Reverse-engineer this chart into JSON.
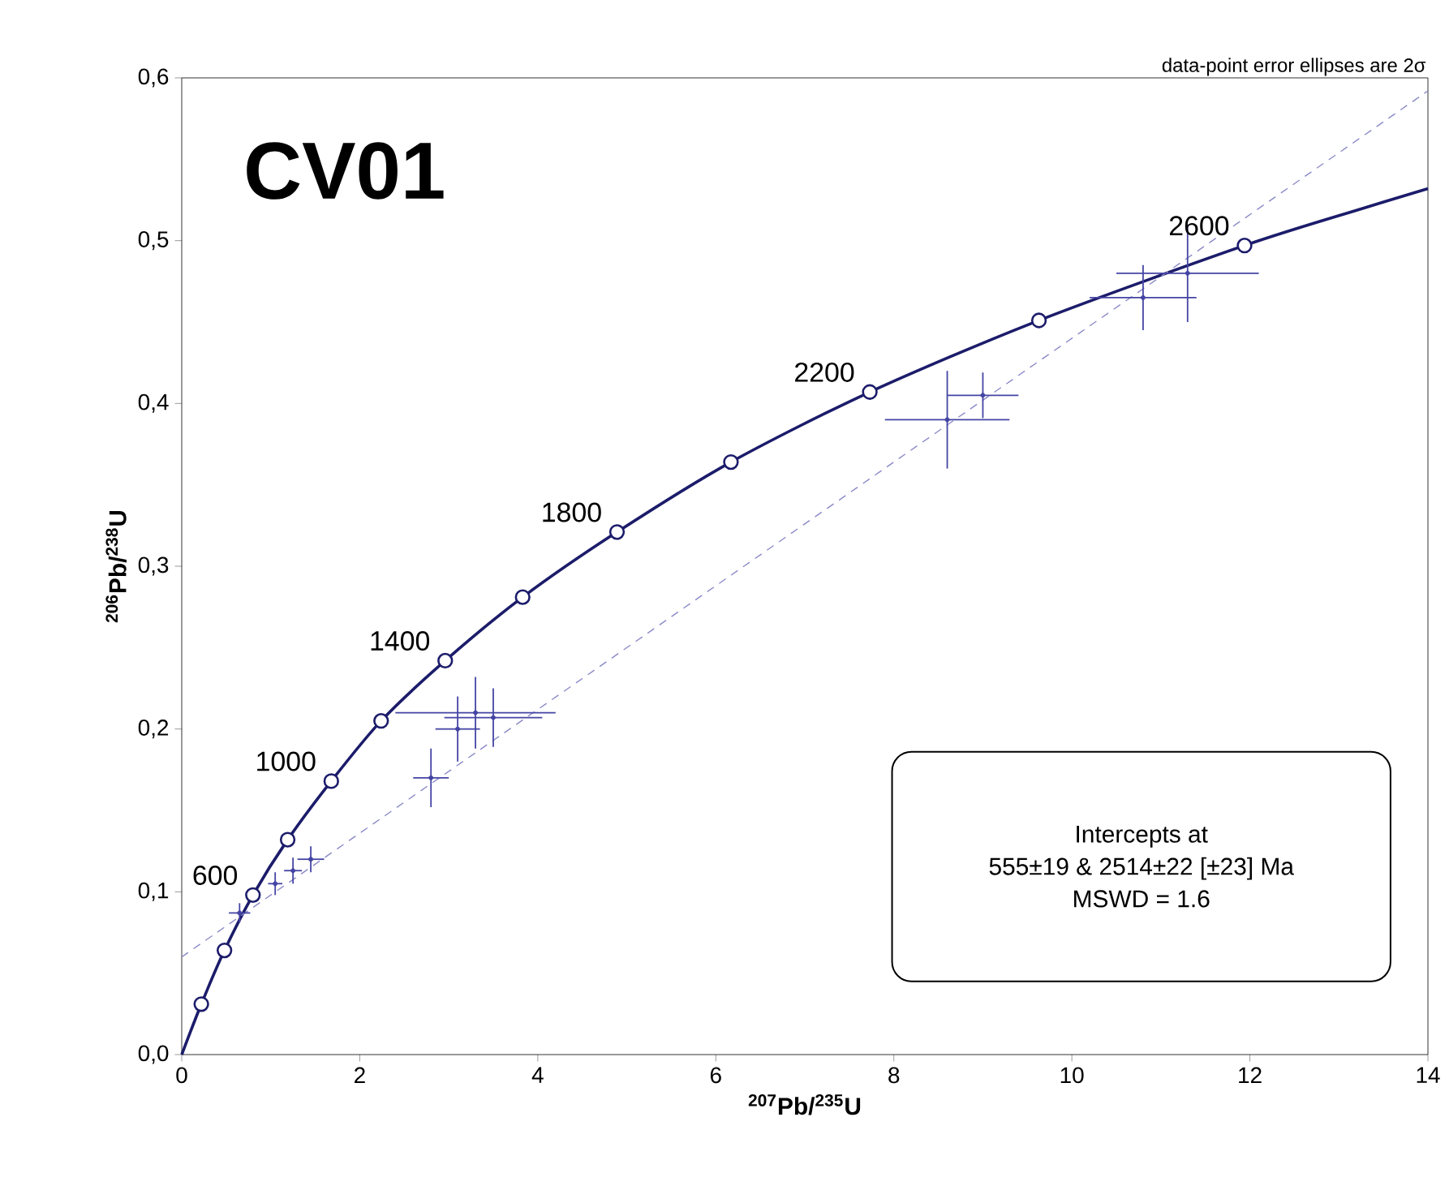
{
  "chart_data": {
    "type": "line",
    "title": "CV01",
    "xlabel": "$^{207}$Pb/$^{235}$U",
    "ylabel": "$^{206}$Pb/$^{238}$U",
    "xlim": [
      0,
      14
    ],
    "ylim": [
      0,
      0.6
    ],
    "xticks": [
      0,
      2,
      4,
      6,
      8,
      10,
      12,
      14
    ],
    "yticks": [
      {
        "value": 0,
        "label": "0,0"
      },
      {
        "value": 0.1,
        "label": "0,1"
      },
      {
        "value": 0.2,
        "label": "0,2"
      },
      {
        "value": 0.3,
        "label": "0,3"
      },
      {
        "value": 0.4,
        "label": "0,4"
      },
      {
        "value": 0.5,
        "label": "0,5"
      },
      {
        "value": 0.6,
        "label": "0,6"
      }
    ],
    "series": [
      {
        "color": "#1c1c6b",
        "x": [
          0,
          0.22,
          0.48,
          0.8,
          1.19,
          1.68,
          2.24,
          2.96,
          3.83,
          4.89,
          6.17,
          7.73,
          9.63,
          11.94,
          13.28,
          14
        ],
        "values": [
          0,
          0.031,
          0.064,
          0.098,
          0.132,
          0.168,
          0.205,
          0.242,
          0.281,
          0.321,
          0.364,
          0.407,
          0.451,
          0.497,
          0.52,
          0.532
        ]
      },
      {
        "type": "scatter",
        "marker": "circle",
        "color": "#1c1c6b",
        "x": [
          0.22,
          0.48,
          0.8,
          1.19,
          1.68,
          2.24,
          2.96,
          3.83,
          4.89,
          6.17,
          7.73,
          9.63,
          11.94
        ],
        "values": [
          0.031,
          0.064,
          0.098,
          0.132,
          0.168,
          0.205,
          0.242,
          0.281,
          0.321,
          0.364,
          0.407,
          0.451,
          0.497
        ]
      },
      {
        "type": "line",
        "line_style": "dashed",
        "color": "#8a8ac8",
        "x": [
          0,
          14
        ],
        "values": [
          0.06,
          0.592
        ]
      },
      {
        "type": "scatter",
        "marker": "circle",
        "color": "#4444a4",
        "x": [
          0.65,
          1.05,
          1.25,
          1.45,
          3.3,
          3.5,
          3.1,
          2.8,
          8.6,
          9.0,
          10.8,
          11.3
        ],
        "values": [
          0.087,
          0.105,
          0.113,
          0.12,
          0.21,
          0.207,
          0.2,
          0.17,
          0.39,
          0.405,
          0.465,
          0.48
        ],
        "xerrors": [
          0.12,
          0.08,
          0.1,
          0.15,
          0.9,
          0.55,
          0.25,
          0.2,
          0.7,
          0.4,
          0.6,
          0.8
        ],
        "errors": [
          0.006,
          0.007,
          0.008,
          0.008,
          0.022,
          0.018,
          0.02,
          0.018,
          0.03,
          0.014,
          0.02,
          0.03
        ]
      }
    ],
    "annotations": [
      "data-point error ellipses are 2σ",
      "Intercepts at",
      "555±19 & 2514±22   [±23]  Ma",
      "MSWD = 1.6",
      {
        "text": "600",
        "x": 0.8,
        "y": 0.098
      },
      {
        "text": "1000",
        "x": 1.68,
        "y": 0.168
      },
      {
        "text": "1400",
        "x": 2.96,
        "y": 0.242
      },
      {
        "text": "1800",
        "x": 4.89,
        "y": 0.321
      },
      {
        "text": "2200",
        "x": 7.73,
        "y": 0.407
      },
      {
        "text": "2600",
        "x": 11.94,
        "y": 0.497
      }
    ]
  }
}
